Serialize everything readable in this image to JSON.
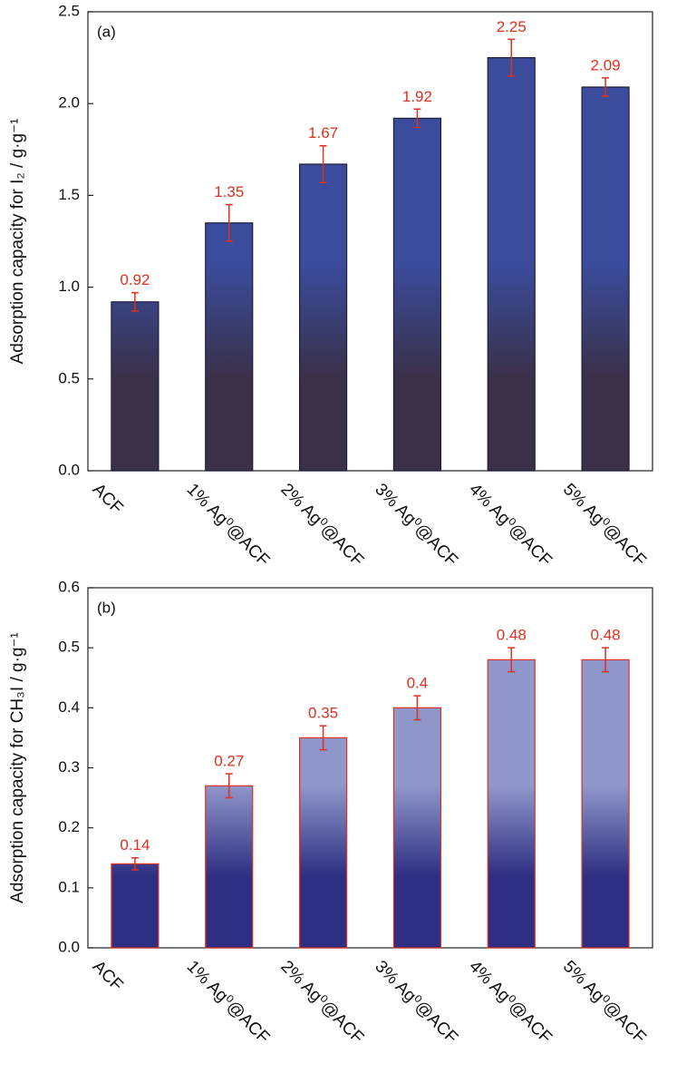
{
  "chart_data": [
    {
      "type": "bar",
      "panel_label": "(a)",
      "y_label": "Adsorption capacity for I₂ / g·g⁻¹",
      "categories": [
        "ACF",
        "1% Ag⁰@ACF",
        "2% Ag⁰@ACF",
        "3% Ag⁰@ACF",
        "4% Ag⁰@ACF",
        "5% Ag⁰@ACF"
      ],
      "values": [
        0.92,
        1.35,
        1.67,
        1.92,
        2.25,
        2.09
      ],
      "errors": [
        0.05,
        0.1,
        0.1,
        0.05,
        0.1,
        0.05
      ],
      "color": "#3b4c9c",
      "color_bottom": "#3a3048",
      "edge_color": "#1e1e3a",
      "error_color": "#e0301e",
      "ylim": [
        0,
        2.5
      ],
      "yticks": [
        {
          "value": 0,
          "label": "0.0"
        },
        0.5,
        {
          "value": 1,
          "label": "1.0"
        },
        1.5,
        {
          "value": 2,
          "label": "2.0"
        },
        2.5
      ]
    },
    {
      "type": "bar",
      "panel_label": "(b)",
      "y_label": "Adsorption capacity for CH₃I / g·g⁻¹",
      "categories": [
        "ACF",
        "1% Ag⁰@ACF",
        "2% Ag⁰@ACF",
        "3% Ag⁰@ACF",
        "4% Ag⁰@ACF",
        "5% Ag⁰@ACF"
      ],
      "values": [
        0.14,
        0.27,
        0.35,
        0.4,
        0.48,
        0.48
      ],
      "errors": [
        0.01,
        0.02,
        0.02,
        0.02,
        0.02,
        0.02
      ],
      "color": "#8f96c9",
      "color_bottom": "#2e2f82",
      "edge_color": "#e0301e",
      "error_color": "#e0301e",
      "ylim": [
        0,
        0.6
      ],
      "yticks": [
        {
          "value": 0,
          "label": "0.0"
        },
        0.1,
        0.2,
        0.3,
        0.4,
        0.5,
        0.6
      ]
    }
  ]
}
